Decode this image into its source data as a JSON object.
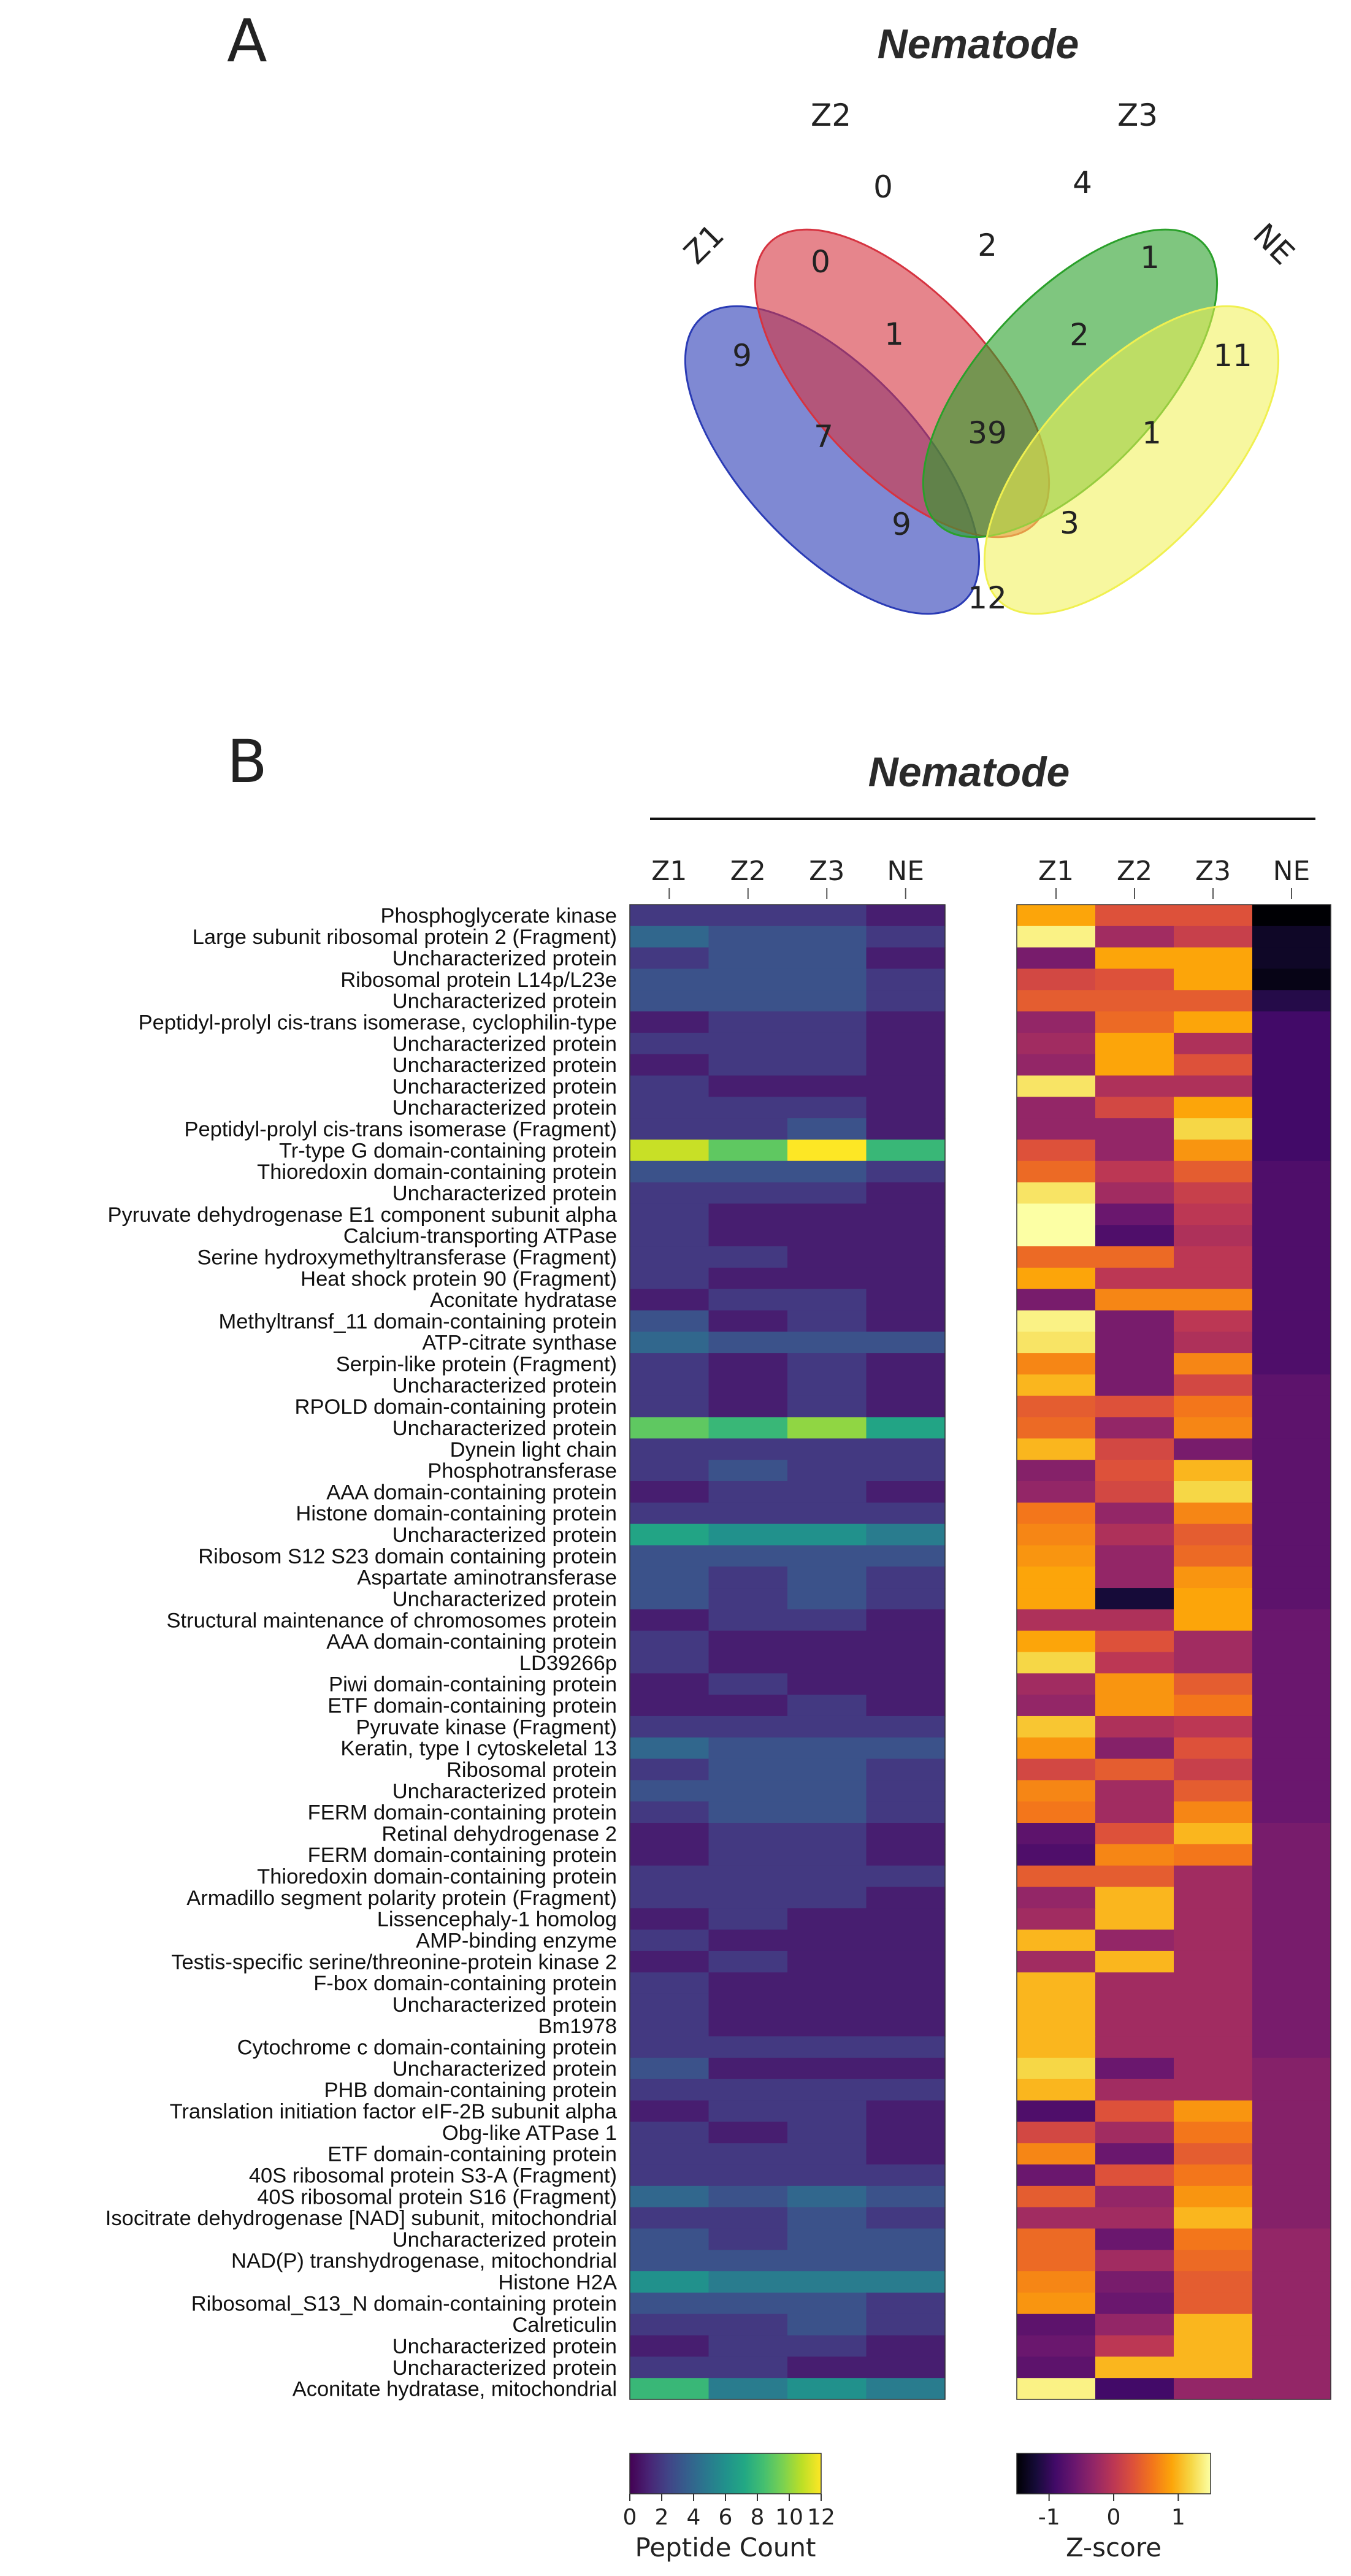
{
  "panel_a": {
    "label": "A",
    "title": "Nematode",
    "sets": [
      "Z1",
      "Z2",
      "Z3",
      "NE"
    ],
    "regions": [
      {
        "sets": "Z1",
        "count": "9"
      },
      {
        "sets": "Z2",
        "count": "0"
      },
      {
        "sets": "Z3",
        "count": "4"
      },
      {
        "sets": "NE",
        "count": "11"
      },
      {
        "sets": "Z1&Z2",
        "count": "0"
      },
      {
        "sets": "Z2&Z3",
        "count": "2"
      },
      {
        "sets": "Z3&NE",
        "count": "1"
      },
      {
        "sets": "Z1&Z2&Z3",
        "count": "1"
      },
      {
        "sets": "Z2&Z3&NE",
        "count": "2"
      },
      {
        "sets": "Z1&Z3",
        "count": "7"
      },
      {
        "sets": "Z1&Z2&Z3&NE",
        "count": "39"
      },
      {
        "sets": "Z2&NE",
        "count": "1"
      },
      {
        "sets": "Z1&Z3&NE",
        "count": "9"
      },
      {
        "sets": "Z1&Z2&NE",
        "count": "3"
      },
      {
        "sets": "Z1&NE",
        "count": "12"
      }
    ],
    "colors": {
      "Z1": "#2a3bb5",
      "Z2": "#d63340",
      "Z3": "#2aa02a",
      "NE": "#f0f050"
    }
  },
  "panel_b": {
    "label": "B",
    "title": "Nematode"
  },
  "chart_data": [
    {
      "type": "heatmap",
      "name": "peptide_count",
      "columns": [
        "Z1",
        "Z2",
        "Z3",
        "NE"
      ],
      "colorbar": {
        "label": "Peptide Count",
        "range": [
          0,
          12
        ],
        "ticks": [
          "0",
          "2",
          "4",
          "6",
          "8",
          "10",
          "12"
        ],
        "colormap": "viridis"
      },
      "rows": [
        {
          "label": "Phosphoglycerate kinase",
          "values": [
            2,
            2,
            2,
            1
          ]
        },
        {
          "label": "Large subunit ribosomal protein 2 (Fragment)",
          "values": [
            4,
            3,
            3,
            2
          ]
        },
        {
          "label": "Uncharacterized protein",
          "values": [
            2,
            3,
            3,
            1
          ]
        },
        {
          "label": "Ribosomal protein L14p/L23e",
          "values": [
            3,
            3,
            3,
            2
          ]
        },
        {
          "label": "Uncharacterized protein",
          "values": [
            3,
            3,
            3,
            2
          ]
        },
        {
          "label": "Peptidyl-prolyl cis-trans isomerase, cyclophilin-type",
          "values": [
            1,
            2,
            2,
            1
          ]
        },
        {
          "label": "Uncharacterized protein",
          "values": [
            2,
            2,
            2,
            1
          ]
        },
        {
          "label": "Uncharacterized protein",
          "values": [
            1,
            2,
            2,
            1
          ]
        },
        {
          "label": "Uncharacterized protein",
          "values": [
            2,
            1,
            1,
            1
          ]
        },
        {
          "label": "Uncharacterized protein",
          "values": [
            2,
            2,
            2,
            1
          ]
        },
        {
          "label": "Peptidyl-prolyl cis-trans isomerase (Fragment)",
          "values": [
            2,
            2,
            3,
            1
          ]
        },
        {
          "label": "Tr-type G domain-containing protein",
          "values": [
            11,
            9,
            12,
            8
          ]
        },
        {
          "label": "Thioredoxin domain-containing protein",
          "values": [
            3,
            3,
            3,
            2
          ]
        },
        {
          "label": "Uncharacterized protein",
          "values": [
            2,
            2,
            2,
            1
          ]
        },
        {
          "label": "Pyruvate dehydrogenase E1 component subunit alpha",
          "values": [
            2,
            1,
            1,
            1
          ]
        },
        {
          "label": "Calcium-transporting ATPase",
          "values": [
            2,
            1,
            1,
            1
          ]
        },
        {
          "label": "Serine hydroxymethyltransferase (Fragment)",
          "values": [
            2,
            2,
            1,
            1
          ]
        },
        {
          "label": "Heat shock protein 90 (Fragment)",
          "values": [
            2,
            1,
            1,
            1
          ]
        },
        {
          "label": "Aconitate hydratase",
          "values": [
            1,
            2,
            2,
            1
          ]
        },
        {
          "label": "Methyltransf_11 domain-containing protein",
          "values": [
            3,
            1,
            2,
            1
          ]
        },
        {
          "label": "ATP-citrate synthase",
          "values": [
            4,
            3,
            3,
            3
          ]
        },
        {
          "label": "Serpin-like protein (Fragment)",
          "values": [
            2,
            1,
            2,
            1
          ]
        },
        {
          "label": "Uncharacterized protein",
          "values": [
            2,
            1,
            2,
            1
          ]
        },
        {
          "label": "RPOLD domain-containing protein",
          "values": [
            2,
            1,
            2,
            1
          ]
        },
        {
          "label": "Uncharacterized protein",
          "values": [
            9,
            8,
            10,
            7
          ]
        },
        {
          "label": "Dynein light chain",
          "values": [
            2,
            2,
            2,
            2
          ]
        },
        {
          "label": "Phosphotransferase",
          "values": [
            2,
            3,
            2,
            2
          ]
        },
        {
          "label": "AAA domain-containing protein",
          "values": [
            1,
            2,
            2,
            1
          ]
        },
        {
          "label": "Histone domain-containing protein",
          "values": [
            2,
            2,
            2,
            2
          ]
        },
        {
          "label": "Uncharacterized protein",
          "values": [
            7,
            6,
            6,
            5
          ]
        },
        {
          "label": "Ribosom S12 S23 domain containing protein",
          "values": [
            3,
            3,
            3,
            3
          ]
        },
        {
          "label": "Aspartate aminotransferase",
          "values": [
            3,
            2,
            3,
            2
          ]
        },
        {
          "label": "Uncharacterized protein",
          "values": [
            3,
            2,
            3,
            2
          ]
        },
        {
          "label": "Structural maintenance of chromosomes protein",
          "values": [
            1,
            2,
            2,
            1
          ]
        },
        {
          "label": "AAA domain-containing protein",
          "values": [
            2,
            1,
            1,
            1
          ]
        },
        {
          "label": "LD39266p",
          "values": [
            2,
            1,
            1,
            1
          ]
        },
        {
          "label": "Piwi domain-containing protein",
          "values": [
            1,
            2,
            1,
            1
          ]
        },
        {
          "label": "ETF domain-containing protein",
          "values": [
            1,
            1,
            2,
            1
          ]
        },
        {
          "label": "Pyruvate kinase (Fragment)",
          "values": [
            2,
            2,
            2,
            2
          ]
        },
        {
          "label": "Keratin, type I cytoskeletal 13",
          "values": [
            4,
            3,
            3,
            3
          ]
        },
        {
          "label": "Ribosomal protein",
          "values": [
            2,
            3,
            3,
            2
          ]
        },
        {
          "label": "Uncharacterized protein",
          "values": [
            3,
            3,
            3,
            2
          ]
        },
        {
          "label": "FERM domain-containing protein",
          "values": [
            2,
            3,
            3,
            2
          ]
        },
        {
          "label": "Retinal dehydrogenase 2",
          "values": [
            1,
            2,
            2,
            1
          ]
        },
        {
          "label": "FERM domain-containing protein",
          "values": [
            1,
            2,
            2,
            1
          ]
        },
        {
          "label": "Thioredoxin domain-containing protein",
          "values": [
            2,
            2,
            2,
            2
          ]
        },
        {
          "label": "Armadillo segment polarity protein (Fragment)",
          "values": [
            2,
            2,
            2,
            1
          ]
        },
        {
          "label": "Lissencephaly-1 homolog",
          "values": [
            1,
            2,
            1,
            1
          ]
        },
        {
          "label": "AMP-binding enzyme",
          "values": [
            2,
            1,
            1,
            1
          ]
        },
        {
          "label": "Testis-specific serine/threonine-protein kinase 2",
          "values": [
            1,
            2,
            1,
            1
          ]
        },
        {
          "label": "F-box domain-containing protein",
          "values": [
            2,
            1,
            1,
            1
          ]
        },
        {
          "label": "Uncharacterized protein",
          "values": [
            2,
            1,
            1,
            1
          ]
        },
        {
          "label": "Bm1978",
          "values": [
            2,
            1,
            1,
            1
          ]
        },
        {
          "label": "Cytochrome c domain-containing protein",
          "values": [
            2,
            2,
            2,
            2
          ]
        },
        {
          "label": "Uncharacterized protein",
          "values": [
            3,
            1,
            1,
            1
          ]
        },
        {
          "label": "PHB domain-containing protein",
          "values": [
            2,
            2,
            2,
            2
          ]
        },
        {
          "label": "Translation initiation factor eIF-2B subunit alpha",
          "values": [
            1,
            2,
            2,
            1
          ]
        },
        {
          "label": "Obg-like ATPase 1",
          "values": [
            2,
            1,
            2,
            1
          ]
        },
        {
          "label": "ETF domain-containing protein",
          "values": [
            2,
            2,
            2,
            1
          ]
        },
        {
          "label": "40S ribosomal protein S3-A (Fragment)",
          "values": [
            2,
            2,
            2,
            2
          ]
        },
        {
          "label": "40S ribosomal protein S16 (Fragment)",
          "values": [
            4,
            3,
            4,
            3
          ]
        },
        {
          "label": "Isocitrate dehydrogenase [NAD] subunit, mitochondrial",
          "values": [
            2,
            2,
            3,
            2
          ]
        },
        {
          "label": "Uncharacterized protein",
          "values": [
            3,
            2,
            3,
            3
          ]
        },
        {
          "label": "NAD(P) transhydrogenase, mitochondrial",
          "values": [
            3,
            3,
            3,
            3
          ]
        },
        {
          "label": "Histone H2A",
          "values": [
            6,
            5,
            5,
            5
          ]
        },
        {
          "label": "Ribosomal_S13_N domain-containing protein",
          "values": [
            3,
            3,
            3,
            2
          ]
        },
        {
          "label": "Calreticulin",
          "values": [
            2,
            2,
            3,
            2
          ]
        },
        {
          "label": "Uncharacterized protein",
          "values": [
            1,
            2,
            2,
            1
          ]
        },
        {
          "label": "Uncharacterized protein",
          "values": [
            2,
            2,
            1,
            1
          ]
        },
        {
          "label": "Aconitate hydratase, mitochondrial",
          "values": [
            8,
            5,
            6,
            5
          ]
        }
      ]
    },
    {
      "type": "heatmap",
      "name": "z_score",
      "columns": [
        "Z1",
        "Z2",
        "Z3",
        "NE"
      ],
      "colorbar": {
        "label": "Z-score",
        "range": [
          -1.5,
          1.5
        ],
        "ticks": [
          "-1",
          "0",
          "1"
        ],
        "colormap": "inferno"
      },
      "values": [
        [
          0.9,
          0.3,
          0.3,
          -1.5
        ],
        [
          1.4,
          -0.2,
          0.1,
          -1.3
        ],
        [
          -0.5,
          0.9,
          0.9,
          -1.3
        ],
        [
          0.2,
          0.3,
          0.9,
          -1.4
        ],
        [
          0.4,
          0.4,
          0.4,
          -1.1
        ],
        [
          -0.3,
          0.5,
          0.9,
          -0.9
        ],
        [
          -0.2,
          0.9,
          -0.1,
          -0.9
        ],
        [
          -0.3,
          0.9,
          0.3,
          -0.9
        ],
        [
          1.3,
          -0.1,
          -0.1,
          -0.9
        ],
        [
          -0.3,
          0.2,
          0.9,
          -0.9
        ],
        [
          -0.3,
          -0.3,
          1.2,
          -0.9
        ],
        [
          0.3,
          -0.3,
          0.8,
          -0.9
        ],
        [
          0.5,
          0.0,
          0.4,
          -0.8
        ],
        [
          1.3,
          -0.2,
          0.1,
          -0.8
        ],
        [
          1.5,
          -0.6,
          0.0,
          -0.8
        ],
        [
          1.5,
          -0.8,
          -0.1,
          -0.8
        ],
        [
          0.5,
          0.5,
          0.0,
          -0.8
        ],
        [
          0.9,
          0.0,
          0.0,
          -0.8
        ],
        [
          -0.5,
          0.7,
          0.7,
          -0.8
        ],
        [
          1.4,
          -0.5,
          0.0,
          -0.8
        ],
        [
          1.3,
          -0.5,
          -0.1,
          -0.8
        ],
        [
          0.7,
          -0.5,
          0.7,
          -0.8
        ],
        [
          1.0,
          -0.5,
          0.2,
          -0.7
        ],
        [
          0.4,
          0.3,
          0.6,
          -0.7
        ],
        [
          0.5,
          -0.3,
          0.7,
          -0.7
        ],
        [
          1.0,
          0.2,
          -0.5,
          -0.7
        ],
        [
          -0.4,
          0.3,
          1.0,
          -0.7
        ],
        [
          -0.3,
          0.2,
          1.2,
          -0.7
        ],
        [
          0.6,
          -0.3,
          0.7,
          -0.7
        ],
        [
          0.7,
          -0.1,
          0.4,
          -0.7
        ],
        [
          0.8,
          -0.3,
          0.5,
          -0.7
        ],
        [
          0.9,
          -0.3,
          0.8,
          -0.7
        ],
        [
          0.9,
          -1.2,
          0.9,
          -0.7
        ],
        [
          -0.1,
          -0.1,
          0.9,
          -0.6
        ],
        [
          0.9,
          0.3,
          -0.2,
          -0.6
        ],
        [
          1.2,
          0.0,
          -0.2,
          -0.6
        ],
        [
          -0.2,
          0.8,
          0.4,
          -0.6
        ],
        [
          -0.3,
          0.8,
          0.6,
          -0.6
        ],
        [
          1.1,
          -0.1,
          0.0,
          -0.6
        ],
        [
          0.8,
          -0.4,
          0.3,
          -0.6
        ],
        [
          0.2,
          0.4,
          0.1,
          -0.6
        ],
        [
          0.7,
          -0.2,
          0.4,
          -0.6
        ],
        [
          0.6,
          -0.2,
          0.7,
          -0.6
        ],
        [
          -0.7,
          0.3,
          1.0,
          -0.5
        ],
        [
          -0.8,
          0.7,
          0.6,
          -0.5
        ],
        [
          0.4,
          0.4,
          -0.2,
          -0.5
        ],
        [
          -0.3,
          1.0,
          -0.2,
          -0.5
        ],
        [
          -0.2,
          1.0,
          -0.2,
          -0.5
        ],
        [
          1.0,
          -0.3,
          -0.2,
          -0.5
        ],
        [
          -0.2,
          1.0,
          -0.2,
          -0.5
        ],
        [
          1.0,
          -0.2,
          -0.2,
          -0.5
        ],
        [
          1.0,
          -0.2,
          -0.2,
          -0.5
        ],
        [
          1.0,
          -0.2,
          -0.2,
          -0.5
        ],
        [
          1.0,
          -0.2,
          -0.2,
          -0.5
        ],
        [
          1.2,
          -0.6,
          -0.2,
          -0.4
        ],
        [
          1.0,
          -0.2,
          -0.2,
          -0.4
        ],
        [
          -0.8,
          0.3,
          0.8,
          -0.4
        ],
        [
          0.2,
          -0.2,
          0.6,
          -0.4
        ],
        [
          0.7,
          -0.6,
          0.4,
          -0.4
        ],
        [
          -0.6,
          0.3,
          0.6,
          -0.4
        ],
        [
          0.4,
          -0.3,
          0.8,
          -0.4
        ],
        [
          -0.2,
          -0.2,
          1.0,
          -0.4
        ],
        [
          0.5,
          -0.6,
          0.6,
          -0.3
        ],
        [
          0.5,
          -0.2,
          0.5,
          -0.3
        ],
        [
          0.7,
          -0.5,
          0.4,
          -0.3
        ],
        [
          0.8,
          -0.6,
          0.4,
          -0.3
        ],
        [
          -0.7,
          -0.3,
          1.0,
          -0.3
        ],
        [
          -0.6,
          0.0,
          1.0,
          -0.3
        ],
        [
          -0.7,
          1.0,
          1.0,
          -0.3
        ],
        [
          1.4,
          -0.9,
          -0.3,
          -0.3
        ]
      ]
    }
  ]
}
